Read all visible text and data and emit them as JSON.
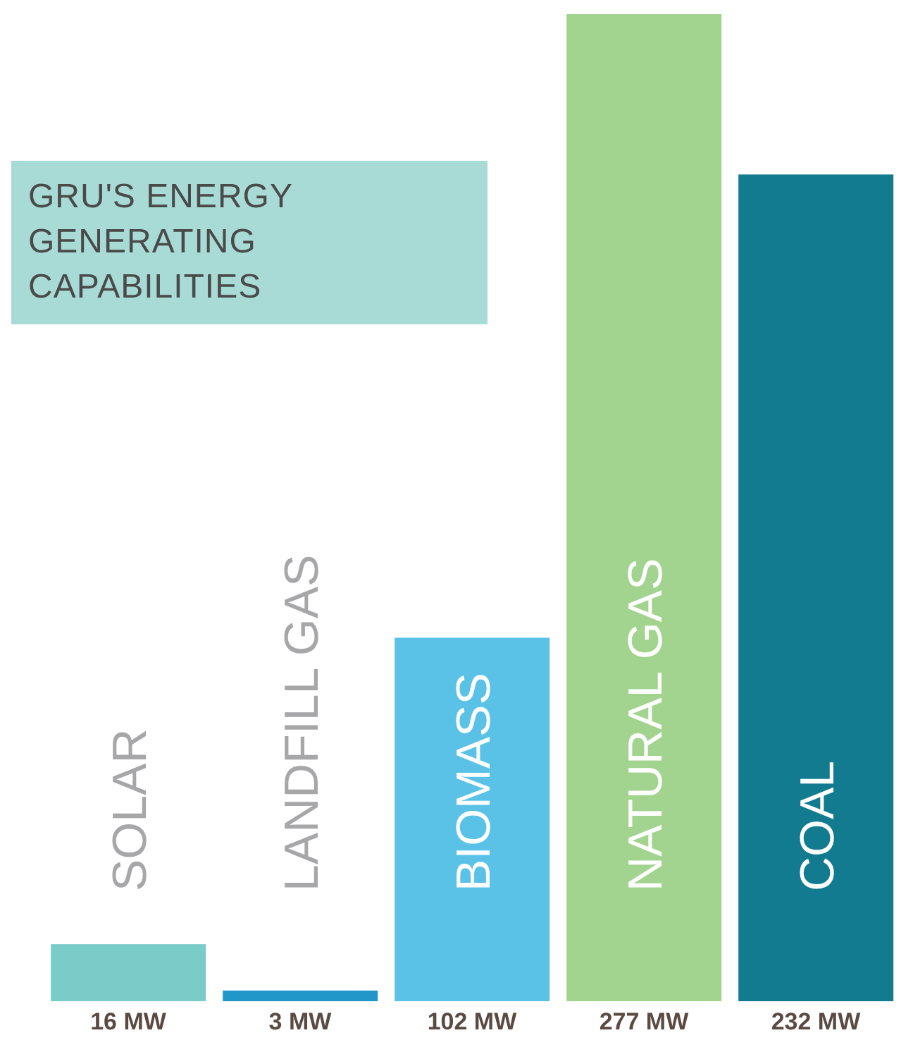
{
  "chart_data": {
    "type": "bar",
    "title": "GRU'S ENERGY GENERATING CAPABILITIES",
    "categories": [
      "SOLAR",
      "LANDFILL GAS",
      "BIOMASS",
      "NATURAL GAS",
      "COAL"
    ],
    "values": [
      16,
      3,
      102,
      277,
      232
    ],
    "colors": [
      "#7accc8",
      "#2196c9",
      "#5bc2e7",
      "#a3d48f",
      "#127b8f"
    ],
    "value_labels": [
      "16 MW",
      "3 MW",
      "102 MW",
      "277 MW",
      "232 MW"
    ]
  }
}
